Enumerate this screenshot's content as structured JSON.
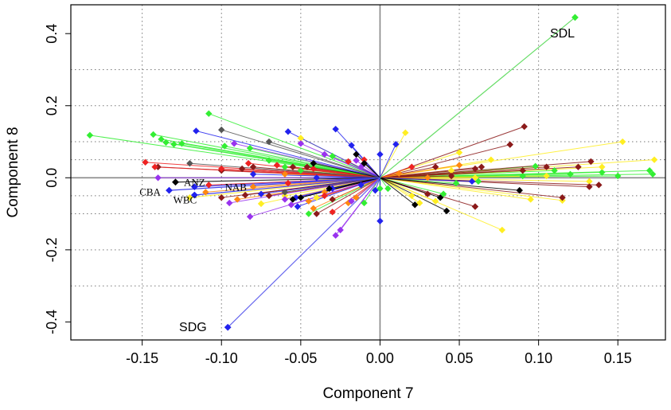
{
  "chart_data": {
    "type": "scatter",
    "xlabel": "Component 7",
    "ylabel": "Component 8",
    "xlim": [
      -0.195,
      0.18
    ],
    "ylim": [
      -0.45,
      0.48
    ],
    "x_ticks": [
      -0.15,
      -0.1,
      -0.05,
      0.0,
      0.05,
      0.1,
      0.15
    ],
    "x_tick_labels": [
      "-0.15",
      "-0.10",
      "-0.05",
      "0.00",
      "0.05",
      "0.10",
      "0.15"
    ],
    "y_ticks": [
      -0.4,
      -0.2,
      0.0,
      0.2,
      0.4
    ],
    "y_tick_labels": [
      "-0.4",
      "-0.2",
      "0.0",
      "0.2",
      "0.4"
    ],
    "v_grid": [
      -0.15,
      -0.1,
      -0.05,
      0.0,
      0.05,
      0.1,
      0.15
    ],
    "h_grid": [
      -0.3,
      -0.2,
      -0.1,
      -0.05,
      0.0,
      0.05,
      0.1,
      0.2,
      0.3
    ],
    "grid": true,
    "origin_lines": true,
    "vectors_from_origin": true,
    "labeled_points": [
      {
        "label": "SDL",
        "x": 0.123,
        "y": 0.445,
        "color": "#33ee33",
        "line": "#66dd66",
        "label_dx": -0.008,
        "label_dy": -0.045,
        "serif": false
      },
      {
        "label": "SDG",
        "x": -0.096,
        "y": -0.415,
        "color": "#2222ee",
        "line": "#6666ee",
        "label_dx": -0.022,
        "label_dy": 0.0,
        "serif": false
      },
      {
        "label": "ANZ",
        "x": -0.129,
        "y": -0.012,
        "color": "#000000",
        "line": "#333333",
        "label_dx": 0.012,
        "label_dy": 0.0,
        "serif": true
      },
      {
        "label": "NAB",
        "x": -0.117,
        "y": -0.025,
        "color": "#2222ee",
        "line": "#4444ee",
        "label_dx": 0.026,
        "label_dy": 0.0,
        "serif": true
      },
      {
        "label": "CBA",
        "x": -0.133,
        "y": -0.035,
        "color": "#2222ee",
        "line": "#4444ee",
        "label_dx": -0.012,
        "label_dy": -0.003,
        "serif": true
      },
      {
        "label": "WBC",
        "x": -0.117,
        "y": -0.048,
        "color": "#2222ee",
        "line": "#4444ee",
        "label_dx": -0.006,
        "label_dy": -0.012,
        "serif": true
      }
    ],
    "series": [
      {
        "color": "#33ee33",
        "points": [
          [
            -0.183,
            0.118
          ],
          [
            -0.143,
            0.12
          ],
          [
            -0.138,
            0.107
          ],
          [
            -0.135,
            0.098
          ],
          [
            -0.13,
            0.093
          ],
          [
            -0.125,
            0.095
          ],
          [
            -0.108,
            0.178
          ],
          [
            -0.098,
            0.088
          ],
          [
            -0.082,
            0.082
          ],
          [
            -0.07,
            0.048
          ],
          [
            -0.06,
            0.03
          ],
          [
            -0.05,
            0.02
          ],
          [
            -0.045,
            -0.1
          ],
          [
            -0.03,
            0.06
          ],
          [
            -0.01,
            -0.07
          ],
          [
            0.0,
            -0.03
          ],
          [
            0.005,
            -0.03
          ],
          [
            0.04,
            -0.045
          ],
          [
            0.048,
            -0.015
          ],
          [
            0.062,
            -0.01
          ],
          [
            0.09,
            0.005
          ],
          [
            0.11,
            0.02
          ],
          [
            0.14,
            0.015
          ],
          [
            0.15,
            0.005
          ],
          [
            0.17,
            0.02
          ],
          [
            0.172,
            0.01
          ],
          [
            0.098,
            0.032
          ],
          [
            0.12,
            0.01
          ]
        ]
      },
      {
        "color": "#ffee22",
        "points": [
          [
            0.153,
            0.1
          ],
          [
            0.173,
            0.05
          ],
          [
            0.077,
            -0.145
          ],
          [
            0.016,
            0.125
          ],
          [
            0.05,
            0.07
          ],
          [
            0.115,
            -0.063
          ],
          [
            0.095,
            -0.06
          ],
          [
            0.06,
            0.0
          ],
          [
            0.02,
            -0.05
          ],
          [
            -0.05,
            0.11
          ],
          [
            -0.075,
            -0.072
          ],
          [
            -0.12,
            -0.055
          ],
          [
            0.07,
            0.05
          ],
          [
            0.035,
            -0.065
          ],
          [
            0.025,
            -0.07
          ],
          [
            0.045,
            0.02
          ],
          [
            0.105,
            0.005
          ],
          [
            0.132,
            -0.01
          ],
          [
            -0.04,
            -0.055
          ],
          [
            -0.06,
            -0.05
          ],
          [
            0.14,
            0.03
          ]
        ]
      },
      {
        "color": "#8b1a1a",
        "points": [
          [
            0.091,
            0.142
          ],
          [
            0.082,
            0.092
          ],
          [
            0.064,
            0.03
          ],
          [
            0.09,
            0.02
          ],
          [
            0.115,
            -0.055
          ],
          [
            0.132,
            -0.025
          ],
          [
            0.138,
            -0.02
          ],
          [
            0.125,
            0.03
          ],
          [
            0.133,
            0.045
          ],
          [
            0.06,
            -0.08
          ],
          [
            0.06,
            0.025
          ],
          [
            0.045,
            0.005
          ],
          [
            -0.087,
            0.025
          ],
          [
            -0.1,
            0.02
          ],
          [
            -0.085,
            -0.048
          ],
          [
            -0.1,
            -0.055
          ],
          [
            -0.07,
            -0.05
          ],
          [
            -0.04,
            -0.1
          ],
          [
            -0.03,
            -0.06
          ],
          [
            -0.055,
            0.03
          ],
          [
            -0.08,
            0.03
          ],
          [
            0.03,
            -0.045
          ],
          [
            0.035,
            0.03
          ],
          [
            0.105,
            0.03
          ],
          [
            -0.14,
            0.03
          ],
          [
            -0.046,
            0.03
          ]
        ]
      },
      {
        "color": "#ff8811",
        "points": [
          [
            -0.08,
            -0.025
          ],
          [
            -0.09,
            -0.06
          ],
          [
            -0.042,
            -0.085
          ],
          [
            -0.02,
            -0.07
          ],
          [
            0.03,
            0.0
          ],
          [
            0.012,
            0.012
          ],
          [
            -0.11,
            -0.04
          ],
          [
            -0.045,
            -0.065
          ],
          [
            -0.015,
            -0.055
          ],
          [
            -0.06,
            0.01
          ],
          [
            -0.035,
            -0.04
          ],
          [
            0.05,
            0.035
          ]
        ]
      },
      {
        "color": "#ee2222",
        "points": [
          [
            -0.148,
            0.043
          ],
          [
            -0.142,
            0.03
          ],
          [
            -0.1,
            0.025
          ],
          [
            -0.083,
            0.04
          ],
          [
            -0.065,
            0.035
          ],
          [
            -0.042,
            0.025
          ],
          [
            -0.035,
            -0.05
          ],
          [
            -0.02,
            0.045
          ],
          [
            -0.03,
            -0.095
          ],
          [
            -0.01,
            0.05
          ],
          [
            0.02,
            0.03
          ],
          [
            -0.058,
            -0.015
          ],
          [
            -0.108,
            -0.02
          ]
        ]
      },
      {
        "color": "#9933ee",
        "points": [
          [
            -0.092,
            0.095
          ],
          [
            -0.095,
            -0.07
          ],
          [
            -0.082,
            -0.108
          ],
          [
            -0.056,
            -0.075
          ],
          [
            -0.028,
            -0.16
          ],
          [
            -0.025,
            -0.145
          ],
          [
            -0.05,
            0.095
          ],
          [
            -0.035,
            0.065
          ],
          [
            -0.015,
            0.048
          ],
          [
            -0.018,
            -0.065
          ],
          [
            -0.14,
            0.0
          ],
          [
            -0.06,
            -0.06
          ],
          [
            -0.012,
            0.03
          ]
        ]
      },
      {
        "color": "#2222ee",
        "points": [
          [
            -0.058,
            0.128
          ],
          [
            -0.028,
            0.135
          ],
          [
            -0.018,
            0.09
          ],
          [
            0.01,
            0.093
          ],
          [
            0.0,
            0.065
          ],
          [
            -0.116,
            0.13
          ],
          [
            -0.052,
            -0.08
          ],
          [
            -0.012,
            -0.02
          ],
          [
            0.0,
            -0.12
          ],
          [
            -0.003,
            -0.035
          ],
          [
            -0.053,
            -0.055
          ],
          [
            -0.08,
            0.01
          ],
          [
            0.058,
            -0.01
          ],
          [
            -0.075,
            -0.045
          ],
          [
            -0.04,
            0.0
          ],
          [
            -0.03,
            -0.03
          ]
        ]
      },
      {
        "color": "#000000",
        "points": [
          [
            0.022,
            -0.075
          ],
          [
            0.042,
            -0.092
          ],
          [
            0.038,
            -0.055
          ],
          [
            0.088,
            -0.035
          ],
          [
            -0.05,
            -0.055
          ],
          [
            -0.042,
            0.04
          ],
          [
            -0.015,
            0.065
          ],
          [
            -0.032,
            -0.03
          ],
          [
            -0.055,
            -0.06
          ],
          [
            -0.01,
            0.04
          ]
        ]
      },
      {
        "color": "#555555",
        "points": [
          [
            -0.1,
            0.133
          ],
          [
            -0.07,
            0.1
          ],
          [
            -0.12,
            0.04
          ],
          [
            -0.06,
            -0.04
          ]
        ]
      }
    ]
  }
}
